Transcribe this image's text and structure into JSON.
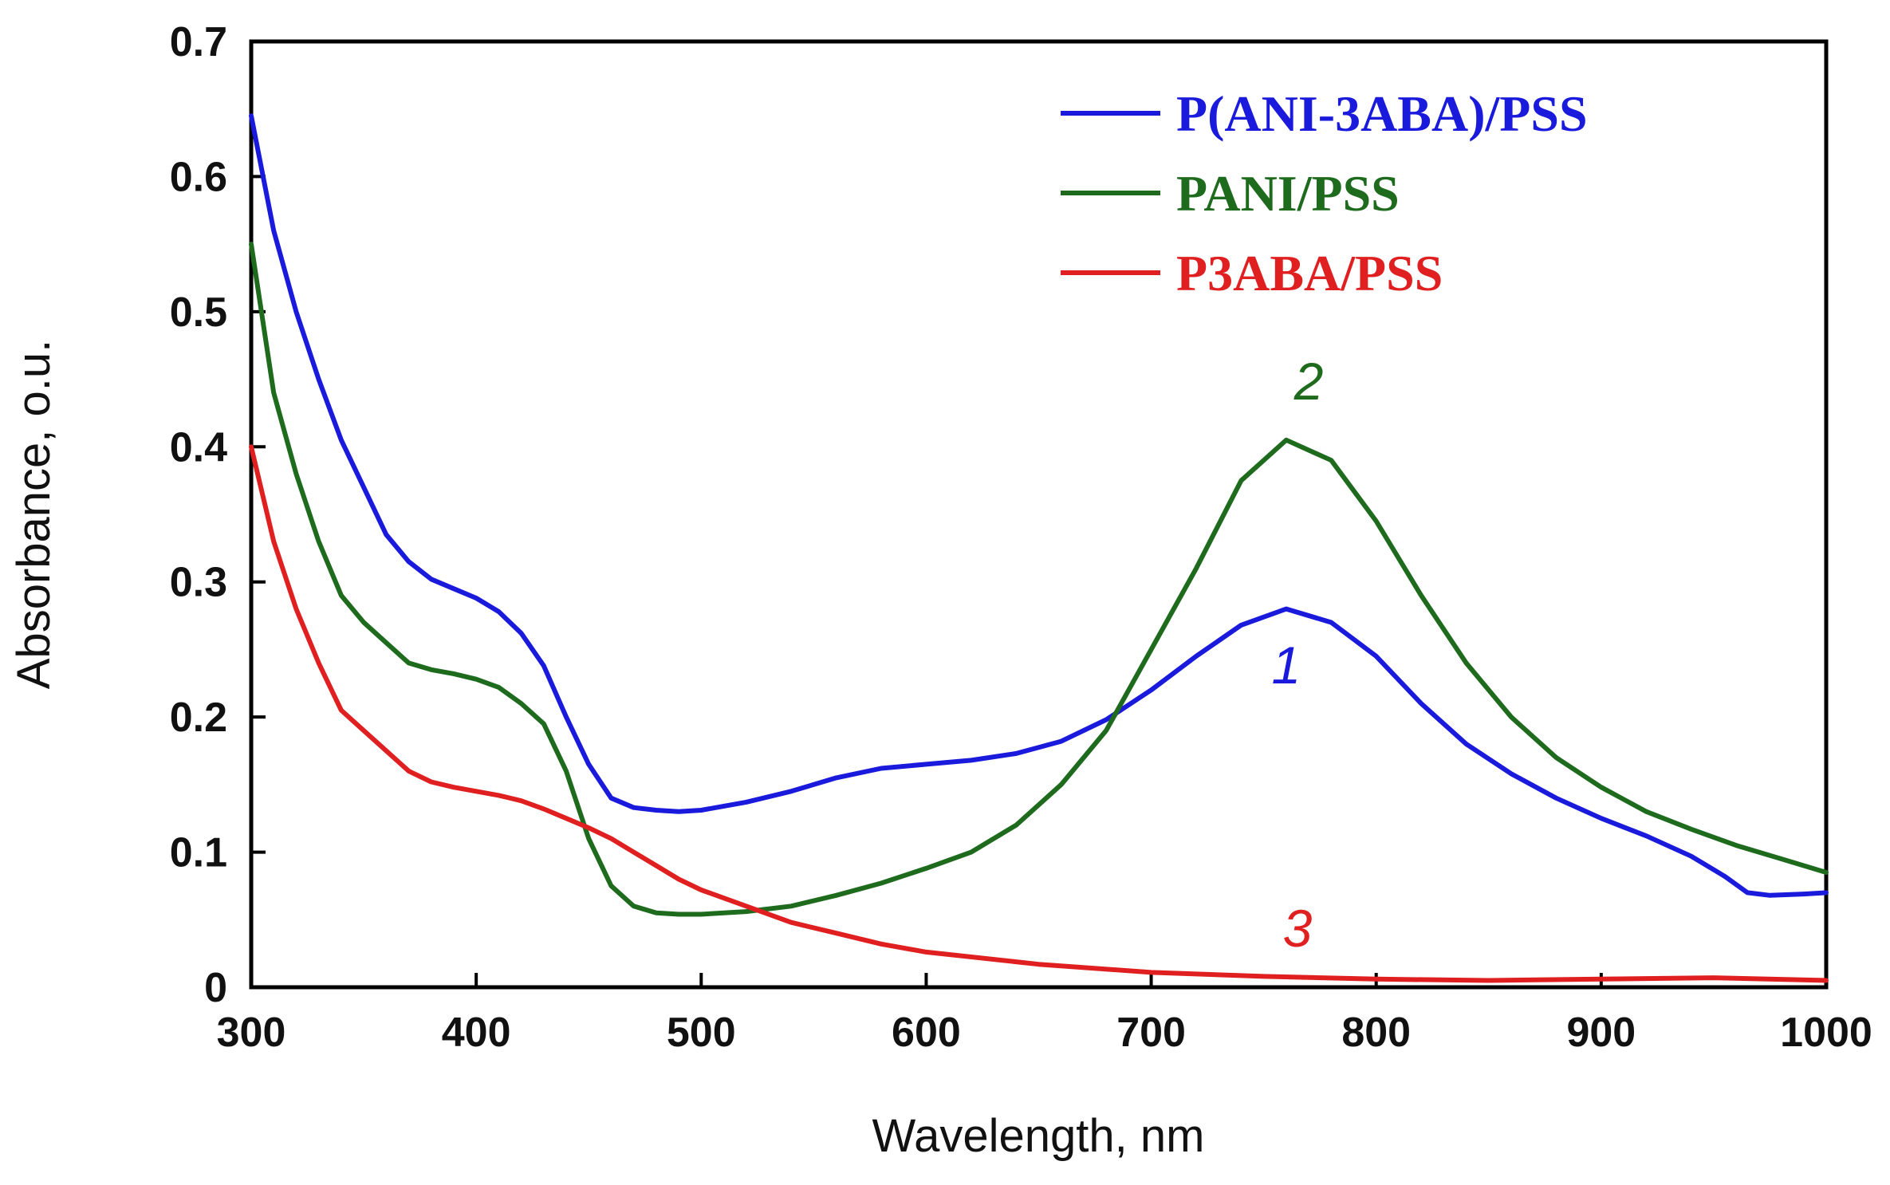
{
  "chart_data": {
    "type": "line",
    "xlabel": "Wavelength, nm",
    "ylabel": "Absorbance, o.u.",
    "xlim": [
      300,
      1000
    ],
    "ylim": [
      0,
      0.7
    ],
    "xticks": [
      "300",
      "400",
      "500",
      "600",
      "700",
      "800",
      "900",
      "1000"
    ],
    "yticks": [
      "0",
      "0.1",
      "0.2",
      "0.3",
      "0.4",
      "0.5",
      "0.6",
      "0.7"
    ],
    "grid": false,
    "legend_position": "top-right",
    "series": [
      {
        "name": "P(ANI-3ABA)/PSS",
        "color": "#1a1adc",
        "curve_label": "1",
        "x": [
          300,
          310,
          320,
          330,
          340,
          350,
          360,
          370,
          380,
          390,
          400,
          410,
          420,
          430,
          440,
          450,
          460,
          470,
          480,
          490,
          500,
          520,
          540,
          560,
          580,
          600,
          620,
          640,
          660,
          680,
          700,
          720,
          740,
          760,
          780,
          800,
          820,
          840,
          860,
          880,
          900,
          920,
          940,
          955,
          965,
          975,
          990,
          1000
        ],
        "y": [
          0.645,
          0.56,
          0.5,
          0.45,
          0.405,
          0.37,
          0.335,
          0.315,
          0.302,
          0.295,
          0.288,
          0.278,
          0.262,
          0.238,
          0.2,
          0.165,
          0.14,
          0.133,
          0.131,
          0.13,
          0.131,
          0.137,
          0.145,
          0.155,
          0.162,
          0.165,
          0.168,
          0.173,
          0.182,
          0.198,
          0.22,
          0.245,
          0.268,
          0.28,
          0.27,
          0.245,
          0.21,
          0.18,
          0.158,
          0.14,
          0.125,
          0.112,
          0.097,
          0.082,
          0.07,
          0.068,
          0.069,
          0.07
        ]
      },
      {
        "name": "PANI/PSS",
        "color": "#1e6b1e",
        "curve_label": "2",
        "x": [
          300,
          310,
          320,
          330,
          340,
          350,
          360,
          370,
          380,
          390,
          400,
          410,
          420,
          430,
          440,
          450,
          460,
          470,
          480,
          490,
          500,
          520,
          540,
          560,
          580,
          600,
          620,
          640,
          660,
          680,
          700,
          720,
          740,
          760,
          780,
          800,
          820,
          840,
          860,
          880,
          900,
          920,
          940,
          960,
          980,
          1000
        ],
        "y": [
          0.55,
          0.44,
          0.38,
          0.33,
          0.29,
          0.27,
          0.255,
          0.24,
          0.235,
          0.232,
          0.228,
          0.222,
          0.21,
          0.195,
          0.16,
          0.11,
          0.075,
          0.06,
          0.055,
          0.054,
          0.054,
          0.056,
          0.06,
          0.068,
          0.077,
          0.088,
          0.1,
          0.12,
          0.15,
          0.19,
          0.25,
          0.31,
          0.375,
          0.405,
          0.39,
          0.345,
          0.29,
          0.24,
          0.2,
          0.17,
          0.148,
          0.13,
          0.117,
          0.105,
          0.095,
          0.085
        ]
      },
      {
        "name": "P3ABA/PSS",
        "color": "#e02020",
        "curve_label": "3",
        "x": [
          300,
          310,
          320,
          330,
          340,
          350,
          360,
          370,
          380,
          390,
          400,
          410,
          420,
          430,
          440,
          450,
          460,
          470,
          480,
          490,
          500,
          520,
          540,
          560,
          580,
          600,
          650,
          700,
          750,
          800,
          850,
          900,
          950,
          1000
        ],
        "y": [
          0.4,
          0.33,
          0.28,
          0.24,
          0.205,
          0.19,
          0.175,
          0.16,
          0.152,
          0.148,
          0.145,
          0.142,
          0.138,
          0.132,
          0.125,
          0.118,
          0.11,
          0.1,
          0.09,
          0.08,
          0.072,
          0.06,
          0.048,
          0.04,
          0.032,
          0.026,
          0.017,
          0.011,
          0.008,
          0.006,
          0.005,
          0.006,
          0.007,
          0.005
        ]
      }
    ]
  }
}
